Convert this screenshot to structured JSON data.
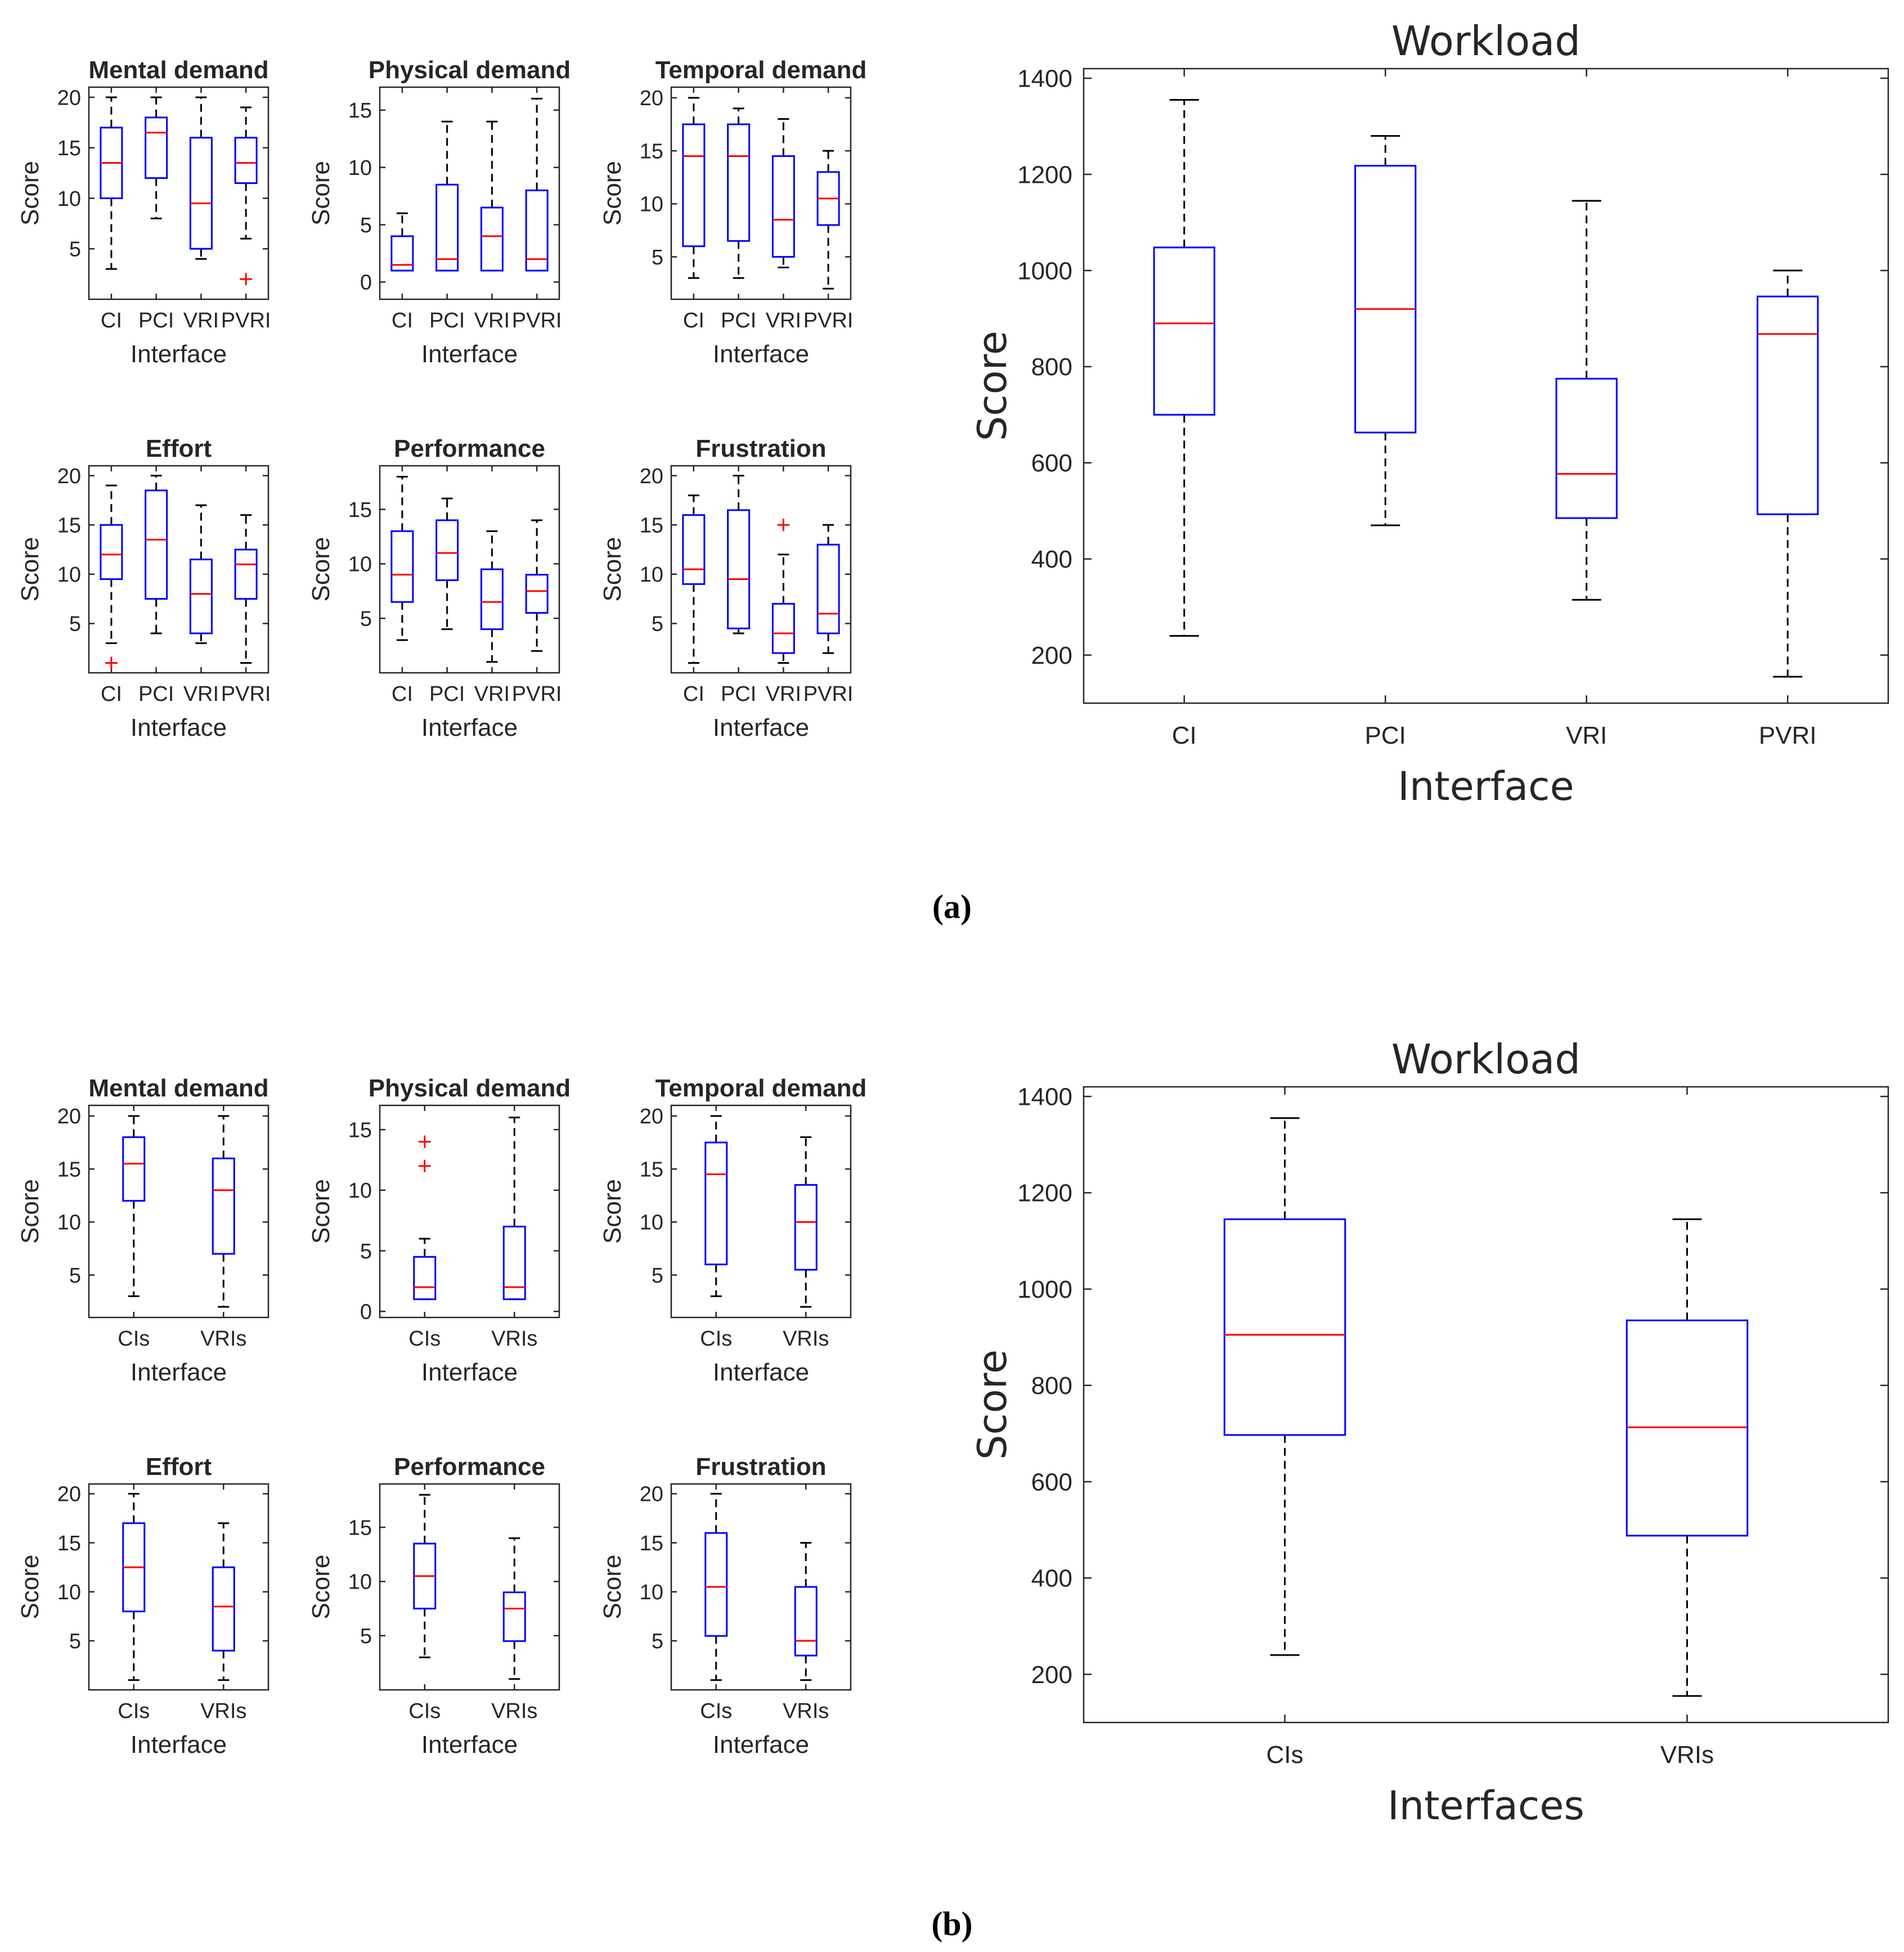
{
  "colors": {
    "box": "#0000ff",
    "median": "#ff0000",
    "whisker": "#000000",
    "outlier": "#ff0000",
    "axis": "#262626"
  },
  "captions": {
    "a": "(a)",
    "b": "(b)"
  },
  "chart_data": [
    {
      "id": "a-mental",
      "type": "box",
      "title": "Mental demand",
      "xlabel": "Interface",
      "ylabel": "Score",
      "ylim": [
        0,
        21
      ],
      "yticks": [
        5,
        10,
        15,
        20
      ],
      "yticklabels": [
        "5",
        "10",
        "15",
        "20"
      ],
      "categories": [
        "CI",
        "PCI",
        "VRI",
        "PVRI"
      ],
      "boxes": [
        {
          "whisker_low": 3,
          "q1": 10,
          "median": 13.5,
          "q3": 17,
          "whisker_high": 20,
          "outliers": []
        },
        {
          "whisker_low": 8,
          "q1": 12,
          "median": 16.5,
          "q3": 18,
          "whisker_high": 20,
          "outliers": []
        },
        {
          "whisker_low": 4,
          "q1": 5,
          "median": 9.5,
          "q3": 16,
          "whisker_high": 20,
          "outliers": []
        },
        {
          "whisker_low": 6,
          "q1": 11.5,
          "median": 13.5,
          "q3": 16,
          "whisker_high": 19,
          "outliers": [
            2
          ]
        }
      ]
    },
    {
      "id": "a-physical",
      "type": "box",
      "title": "Physical demand",
      "xlabel": "Interface",
      "ylabel": "Score",
      "ylim": [
        -1.5,
        17
      ],
      "yticks": [
        0,
        5,
        10,
        15
      ],
      "yticklabels": [
        "0",
        "5",
        "10",
        "15"
      ],
      "categories": [
        "CI",
        "PCI",
        "VRI",
        "PVRI"
      ],
      "boxes": [
        {
          "whisker_low": 1,
          "q1": 1,
          "median": 1.5,
          "q3": 4,
          "whisker_high": 6,
          "outliers": []
        },
        {
          "whisker_low": 1,
          "q1": 1,
          "median": 2,
          "q3": 8.5,
          "whisker_high": 14,
          "outliers": []
        },
        {
          "whisker_low": 1,
          "q1": 1,
          "median": 4,
          "q3": 6.5,
          "whisker_high": 14,
          "outliers": []
        },
        {
          "whisker_low": 1,
          "q1": 1,
          "median": 2,
          "q3": 8,
          "whisker_high": 16,
          "outliers": []
        }
      ]
    },
    {
      "id": "a-temporal",
      "type": "box",
      "title": "Temporal demand",
      "xlabel": "Interface",
      "ylabel": "Score",
      "ylim": [
        1,
        21
      ],
      "yticks": [
        5,
        10,
        15,
        20
      ],
      "yticklabels": [
        "5",
        "10",
        "15",
        "20"
      ],
      "categories": [
        "CI",
        "PCI",
        "VRI",
        "PVRI"
      ],
      "boxes": [
        {
          "whisker_low": 3,
          "q1": 6,
          "median": 14.5,
          "q3": 17.5,
          "whisker_high": 20,
          "outliers": []
        },
        {
          "whisker_low": 3,
          "q1": 6.5,
          "median": 14.5,
          "q3": 17.5,
          "whisker_high": 19,
          "outliers": []
        },
        {
          "whisker_low": 4,
          "q1": 5,
          "median": 8.5,
          "q3": 14.5,
          "whisker_high": 18,
          "outliers": []
        },
        {
          "whisker_low": 2,
          "q1": 8,
          "median": 10.5,
          "q3": 13,
          "whisker_high": 15,
          "outliers": []
        }
      ]
    },
    {
      "id": "a-effort",
      "type": "box",
      "title": "Effort",
      "xlabel": "Interface",
      "ylabel": "Score",
      "ylim": [
        0,
        21
      ],
      "yticks": [
        5,
        10,
        15,
        20
      ],
      "yticklabels": [
        "5",
        "10",
        "15",
        "20"
      ],
      "categories": [
        "CI",
        "PCI",
        "VRI",
        "PVRI"
      ],
      "boxes": [
        {
          "whisker_low": 3,
          "q1": 9.5,
          "median": 12,
          "q3": 15,
          "whisker_high": 19,
          "outliers": [
            1
          ]
        },
        {
          "whisker_low": 4,
          "q1": 7.5,
          "median": 13.5,
          "q3": 18.5,
          "whisker_high": 20,
          "outliers": []
        },
        {
          "whisker_low": 3,
          "q1": 4,
          "median": 8,
          "q3": 11.5,
          "whisker_high": 17,
          "outliers": []
        },
        {
          "whisker_low": 1,
          "q1": 7.5,
          "median": 11,
          "q3": 12.5,
          "whisker_high": 16,
          "outliers": []
        }
      ]
    },
    {
      "id": "a-performance",
      "type": "box",
      "title": "Performance",
      "xlabel": "Interface",
      "ylabel": "Score",
      "ylim": [
        0,
        19
      ],
      "yticks": [
        5,
        10,
        15
      ],
      "yticklabels": [
        "5",
        "10",
        "15"
      ],
      "categories": [
        "CI",
        "PCI",
        "VRI",
        "PVRI"
      ],
      "boxes": [
        {
          "whisker_low": 3,
          "q1": 6.5,
          "median": 9,
          "q3": 13,
          "whisker_high": 18,
          "outliers": []
        },
        {
          "whisker_low": 4,
          "q1": 8.5,
          "median": 11,
          "q3": 14,
          "whisker_high": 16,
          "outliers": []
        },
        {
          "whisker_low": 1,
          "q1": 4,
          "median": 6.5,
          "q3": 9.5,
          "whisker_high": 13,
          "outliers": []
        },
        {
          "whisker_low": 2,
          "q1": 5.5,
          "median": 7.5,
          "q3": 9,
          "whisker_high": 14,
          "outliers": []
        }
      ]
    },
    {
      "id": "a-frustration",
      "type": "box",
      "title": "Frustration",
      "xlabel": "Interface",
      "ylabel": "Score",
      "ylim": [
        0,
        21
      ],
      "yticks": [
        5,
        10,
        15,
        20
      ],
      "yticklabels": [
        "5",
        "10",
        "15",
        "20"
      ],
      "categories": [
        "CI",
        "PCI",
        "VRI",
        "PVRI"
      ],
      "boxes": [
        {
          "whisker_low": 1,
          "q1": 9,
          "median": 10.5,
          "q3": 16,
          "whisker_high": 18,
          "outliers": []
        },
        {
          "whisker_low": 4,
          "q1": 4.5,
          "median": 9.5,
          "q3": 16.5,
          "whisker_high": 20,
          "outliers": []
        },
        {
          "whisker_low": 1,
          "q1": 2,
          "median": 4,
          "q3": 7,
          "whisker_high": 12,
          "outliers": [
            15
          ]
        },
        {
          "whisker_low": 2,
          "q1": 4,
          "median": 6,
          "q3": 13,
          "whisker_high": 15,
          "outliers": []
        }
      ]
    },
    {
      "id": "a-workload",
      "type": "box",
      "title": "Workload",
      "xlabel": "Interface",
      "ylabel": "Score",
      "ylim": [
        100,
        1420
      ],
      "yticks": [
        200,
        400,
        600,
        800,
        1000,
        1200,
        1400
      ],
      "yticklabels": [
        "200",
        "400",
        "600",
        "800",
        "1000",
        "1200",
        "1400"
      ],
      "categories": [
        "CI",
        "PCI",
        "VRI",
        "PVRI"
      ],
      "boxes": [
        {
          "whisker_low": 240,
          "q1": 700,
          "median": 890,
          "q3": 1048,
          "whisker_high": 1355,
          "outliers": []
        },
        {
          "whisker_low": 470,
          "q1": 663,
          "median": 920,
          "q3": 1218,
          "whisker_high": 1280,
          "outliers": []
        },
        {
          "whisker_low": 315,
          "q1": 485,
          "median": 577,
          "q3": 775,
          "whisker_high": 1145,
          "outliers": []
        },
        {
          "whisker_low": 155,
          "q1": 493,
          "median": 868,
          "q3": 946,
          "whisker_high": 1000,
          "outliers": []
        }
      ]
    },
    {
      "id": "b-mental",
      "type": "box",
      "title": "Mental demand",
      "xlabel": "Interface",
      "ylabel": "Score",
      "ylim": [
        1,
        21
      ],
      "yticks": [
        5,
        10,
        15,
        20
      ],
      "yticklabels": [
        "5",
        "10",
        "15",
        "20"
      ],
      "categories": [
        "CIs",
        "VRIs"
      ],
      "boxes": [
        {
          "whisker_low": 3,
          "q1": 12,
          "median": 15.5,
          "q3": 18,
          "whisker_high": 20,
          "outliers": []
        },
        {
          "whisker_low": 2,
          "q1": 7,
          "median": 13,
          "q3": 16,
          "whisker_high": 20,
          "outliers": []
        }
      ]
    },
    {
      "id": "b-physical",
      "type": "box",
      "title": "Physical demand",
      "xlabel": "Interface",
      "ylabel": "Score",
      "ylim": [
        -0.5,
        17
      ],
      "yticks": [
        0,
        5,
        10,
        15
      ],
      "yticklabels": [
        "0",
        "5",
        "10",
        "15"
      ],
      "categories": [
        "CIs",
        "VRIs"
      ],
      "boxes": [
        {
          "whisker_low": 1,
          "q1": 1,
          "median": 2,
          "q3": 4.5,
          "whisker_high": 6,
          "outliers": [
            12,
            14
          ]
        },
        {
          "whisker_low": 1,
          "q1": 1,
          "median": 2,
          "q3": 7,
          "whisker_high": 16,
          "outliers": []
        }
      ]
    },
    {
      "id": "b-temporal",
      "type": "box",
      "title": "Temporal demand",
      "xlabel": "Interface",
      "ylabel": "Score",
      "ylim": [
        1,
        21
      ],
      "yticks": [
        5,
        10,
        15,
        20
      ],
      "yticklabels": [
        "5",
        "10",
        "15",
        "20"
      ],
      "categories": [
        "CIs",
        "VRIs"
      ],
      "boxes": [
        {
          "whisker_low": 3,
          "q1": 6,
          "median": 14.5,
          "q3": 17.5,
          "whisker_high": 20,
          "outliers": []
        },
        {
          "whisker_low": 2,
          "q1": 5.5,
          "median": 10,
          "q3": 13.5,
          "whisker_high": 18,
          "outliers": []
        }
      ]
    },
    {
      "id": "b-effort",
      "type": "box",
      "title": "Effort",
      "xlabel": "Interface",
      "ylabel": "Score",
      "ylim": [
        0,
        21
      ],
      "yticks": [
        5,
        10,
        15,
        20
      ],
      "yticklabels": [
        "5",
        "10",
        "15",
        "20"
      ],
      "categories": [
        "CIs",
        "VRIs"
      ],
      "boxes": [
        {
          "whisker_low": 1,
          "q1": 8,
          "median": 12.5,
          "q3": 17,
          "whisker_high": 20,
          "outliers": []
        },
        {
          "whisker_low": 1,
          "q1": 4,
          "median": 8.5,
          "q3": 12.5,
          "whisker_high": 17,
          "outliers": []
        }
      ]
    },
    {
      "id": "b-performance",
      "type": "box",
      "title": "Performance",
      "xlabel": "Interface",
      "ylabel": "Score",
      "ylim": [
        0,
        19
      ],
      "yticks": [
        5,
        10,
        15
      ],
      "yticklabels": [
        "5",
        "10",
        "15"
      ],
      "categories": [
        "CIs",
        "VRIs"
      ],
      "boxes": [
        {
          "whisker_low": 3,
          "q1": 7.5,
          "median": 10.5,
          "q3": 13.5,
          "whisker_high": 18,
          "outliers": []
        },
        {
          "whisker_low": 1,
          "q1": 4.5,
          "median": 7.5,
          "q3": 9,
          "whisker_high": 14,
          "outliers": []
        }
      ]
    },
    {
      "id": "b-frustration",
      "type": "box",
      "title": "Frustration",
      "xlabel": "Interface",
      "ylabel": "Score",
      "ylim": [
        0,
        21
      ],
      "yticks": [
        5,
        10,
        15,
        20
      ],
      "yticklabels": [
        "5",
        "10",
        "15",
        "20"
      ],
      "categories": [
        "CIs",
        "VRIs"
      ],
      "boxes": [
        {
          "whisker_low": 1,
          "q1": 5.5,
          "median": 10.5,
          "q3": 16,
          "whisker_high": 20,
          "outliers": []
        },
        {
          "whisker_low": 1,
          "q1": 3.5,
          "median": 5,
          "q3": 10.5,
          "whisker_high": 15,
          "outliers": []
        }
      ]
    },
    {
      "id": "b-workload",
      "type": "box",
      "title": "Workload",
      "xlabel": "Interfaces",
      "ylabel": "Score",
      "ylim": [
        100,
        1420
      ],
      "yticks": [
        200,
        400,
        600,
        800,
        1000,
        1200,
        1400
      ],
      "yticklabels": [
        "200",
        "400",
        "600",
        "800",
        "1000",
        "1200",
        "1400"
      ],
      "categories": [
        "CIs",
        "VRIs"
      ],
      "boxes": [
        {
          "whisker_low": 240,
          "q1": 697,
          "median": 905,
          "q3": 1145,
          "whisker_high": 1355,
          "outliers": []
        },
        {
          "whisker_low": 155,
          "q1": 488,
          "median": 713,
          "q3": 935,
          "whisker_high": 1145,
          "outliers": []
        }
      ]
    }
  ]
}
